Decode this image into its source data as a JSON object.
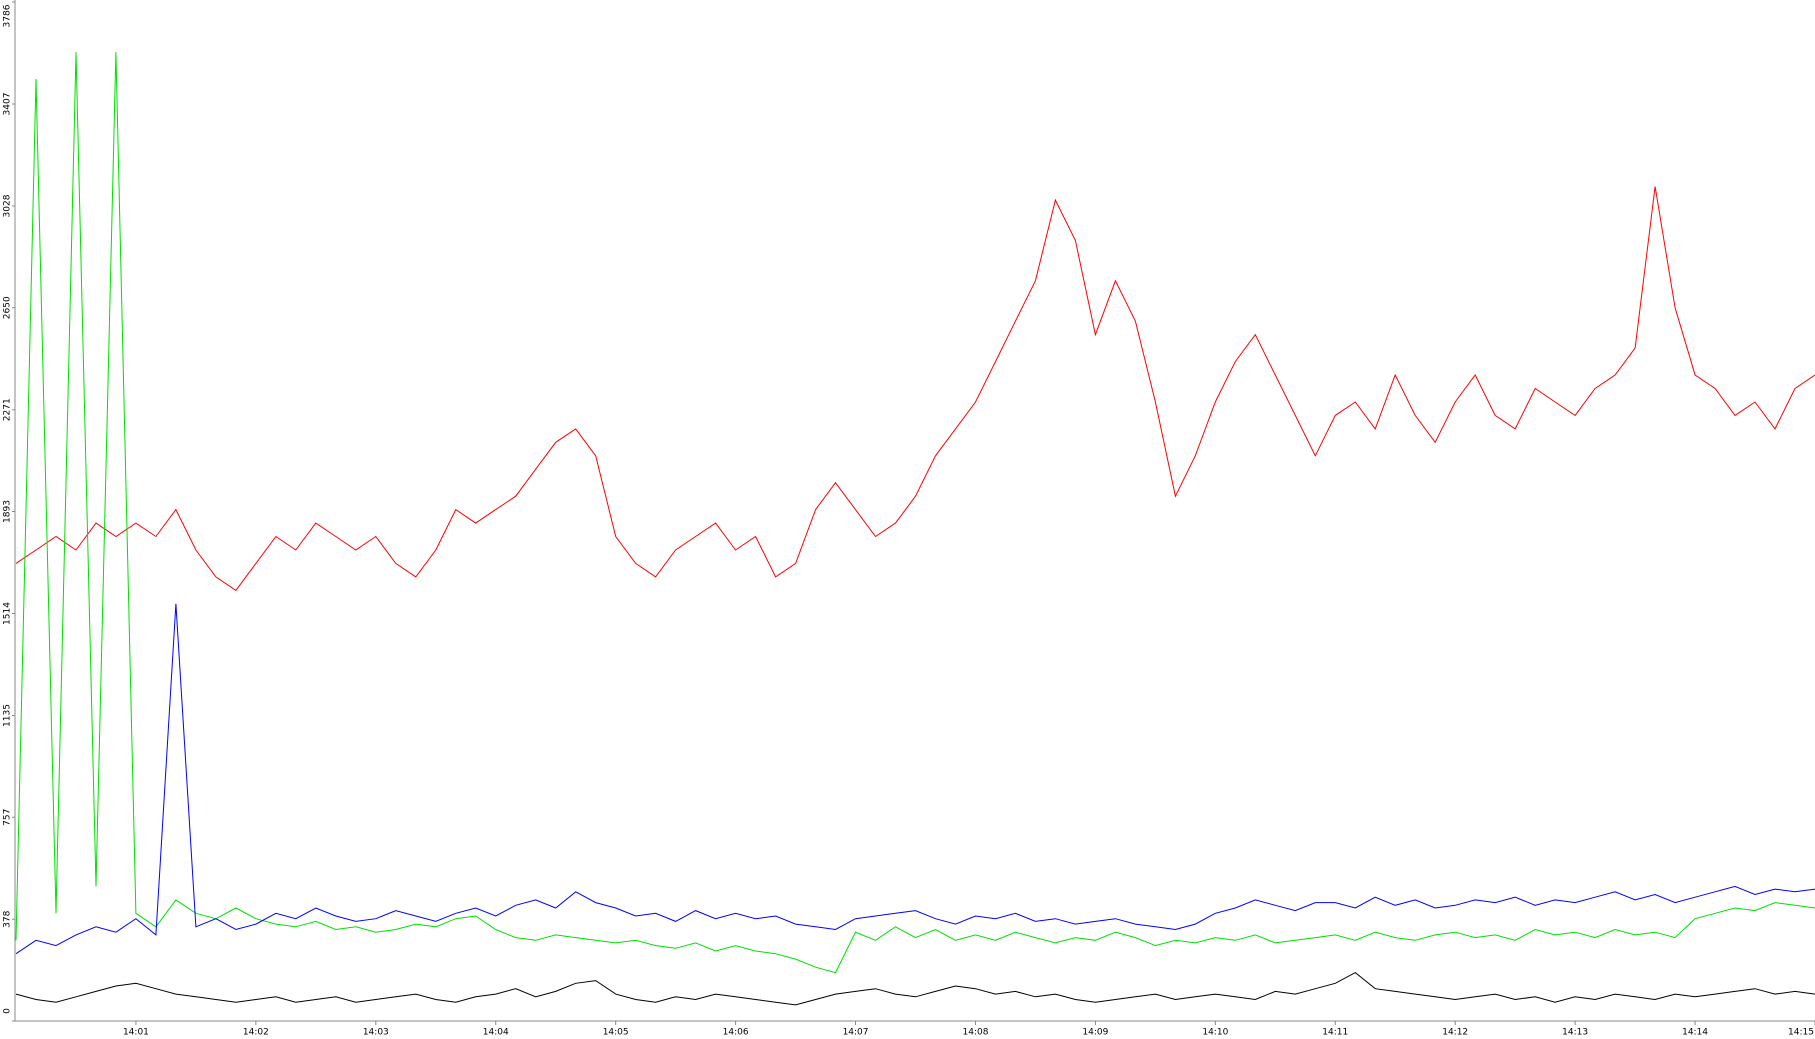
{
  "chart_data": {
    "type": "line",
    "x": [
      0,
      10,
      20,
      30,
      40,
      50,
      60,
      70,
      80,
      90,
      100,
      110,
      120,
      130,
      140,
      150,
      160,
      170,
      180,
      190,
      200,
      210,
      220,
      230,
      240,
      250,
      260,
      270,
      280,
      290,
      300,
      310,
      320,
      330,
      340,
      350,
      360,
      370,
      380,
      390,
      400,
      410,
      420,
      430,
      440,
      450,
      460,
      470,
      480,
      490,
      500,
      510,
      520,
      530,
      540,
      550,
      560,
      570,
      580,
      590,
      600,
      610,
      620,
      630,
      640,
      650,
      660,
      670,
      680,
      690,
      700,
      710,
      720,
      730,
      740,
      750,
      760,
      770,
      780,
      790,
      800,
      810,
      820,
      830,
      840,
      850,
      860,
      870,
      880,
      890,
      900
    ],
    "xlim": [
      0,
      900
    ],
    "xticks": [
      {
        "value": 60,
        "label": "14:01"
      },
      {
        "value": 120,
        "label": "14:02"
      },
      {
        "value": 180,
        "label": "14:03"
      },
      {
        "value": 240,
        "label": "14:04"
      },
      {
        "value": 300,
        "label": "14:05"
      },
      {
        "value": 360,
        "label": "14:06"
      },
      {
        "value": 420,
        "label": "14:07"
      },
      {
        "value": 480,
        "label": "14:08"
      },
      {
        "value": 540,
        "label": "14:09"
      },
      {
        "value": 600,
        "label": "14:10"
      },
      {
        "value": 660,
        "label": "14:11"
      },
      {
        "value": 720,
        "label": "14:12"
      },
      {
        "value": 780,
        "label": "14:13"
      },
      {
        "value": 840,
        "label": "14:14"
      },
      {
        "value": 900,
        "label": "14:15"
      }
    ],
    "ylim": [
      0,
      3786
    ],
    "yticks": [
      0,
      378,
      757,
      1135,
      1514,
      1893,
      2271,
      2650,
      3028,
      3407,
      3786
    ],
    "series": [
      {
        "color": "#ff0000",
        "values": [
          1700,
          1750,
          1800,
          1750,
          1850,
          1800,
          1850,
          1800,
          1900,
          1750,
          1650,
          1600,
          1700,
          1800,
          1750,
          1850,
          1800,
          1750,
          1800,
          1700,
          1650,
          1750,
          1900,
          1850,
          1900,
          1950,
          2050,
          2150,
          2200,
          2100,
          1800,
          1700,
          1650,
          1750,
          1800,
          1850,
          1750,
          1800,
          1650,
          1700,
          1900,
          2000,
          1900,
          1800,
          1850,
          1950,
          2100,
          2200,
          2300,
          2450,
          2600,
          2750,
          3050,
          2900,
          2550,
          2750,
          2600,
          2300,
          1950,
          2100,
          2300,
          2450,
          2550,
          2400,
          2250,
          2100,
          2250,
          2300,
          2200,
          2400,
          2250,
          2150,
          2300,
          2400,
          2250,
          2200,
          2350,
          2300,
          2250,
          2350,
          2400,
          2500,
          3100,
          2650,
          2400,
          2350,
          2250,
          2300,
          2200,
          2350,
          2400
        ]
      },
      {
        "color": "#00e000",
        "values": [
          300,
          3500,
          400,
          3600,
          500,
          3600,
          400,
          350,
          450,
          400,
          380,
          420,
          380,
          360,
          350,
          370,
          340,
          350,
          330,
          340,
          360,
          350,
          380,
          390,
          340,
          310,
          300,
          320,
          310,
          300,
          290,
          300,
          280,
          270,
          290,
          260,
          280,
          260,
          250,
          230,
          200,
          180,
          330,
          300,
          350,
          310,
          340,
          300,
          320,
          300,
          330,
          310,
          290,
          310,
          300,
          330,
          310,
          280,
          300,
          290,
          310,
          300,
          320,
          290,
          300,
          310,
          320,
          300,
          330,
          310,
          300,
          320,
          330,
          310,
          320,
          300,
          340,
          320,
          330,
          310,
          340,
          320,
          330,
          310,
          380,
          400,
          420,
          410,
          440,
          430,
          420
        ]
      },
      {
        "color": "#0000ff",
        "values": [
          250,
          300,
          280,
          320,
          350,
          330,
          380,
          320,
          1550,
          350,
          380,
          340,
          360,
          400,
          380,
          420,
          390,
          370,
          380,
          410,
          390,
          370,
          400,
          420,
          390,
          430,
          450,
          420,
          480,
          440,
          420,
          390,
          400,
          370,
          410,
          380,
          400,
          380,
          390,
          360,
          350,
          340,
          380,
          390,
          400,
          410,
          380,
          360,
          390,
          380,
          400,
          370,
          380,
          360,
          370,
          380,
          360,
          350,
          340,
          360,
          400,
          420,
          450,
          430,
          410,
          440,
          440,
          420,
          460,
          430,
          450,
          420,
          430,
          450,
          440,
          460,
          430,
          450,
          440,
          460,
          480,
          450,
          470,
          440,
          460,
          480,
          500,
          470,
          490,
          480,
          490
        ]
      },
      {
        "color": "#000000",
        "values": [
          100,
          80,
          70,
          90,
          110,
          130,
          140,
          120,
          100,
          90,
          80,
          70,
          80,
          90,
          70,
          80,
          90,
          70,
          80,
          90,
          100,
          80,
          70,
          90,
          100,
          120,
          90,
          110,
          140,
          150,
          100,
          80,
          70,
          90,
          80,
          100,
          90,
          80,
          70,
          60,
          80,
          100,
          110,
          120,
          100,
          90,
          110,
          130,
          120,
          100,
          110,
          90,
          100,
          80,
          70,
          80,
          90,
          100,
          80,
          90,
          100,
          90,
          80,
          110,
          100,
          120,
          140,
          180,
          120,
          110,
          100,
          90,
          80,
          90,
          100,
          80,
          90,
          70,
          90,
          80,
          100,
          90,
          80,
          100,
          90,
          100,
          110,
          120,
          100,
          110,
          100
        ]
      }
    ]
  }
}
